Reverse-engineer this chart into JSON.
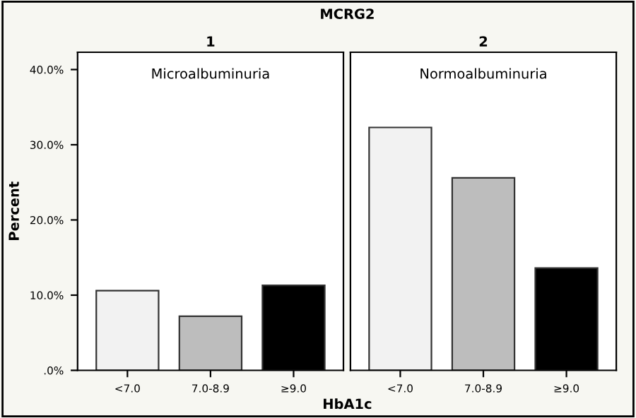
{
  "chart_data": [
    {
      "type": "bar",
      "title": "1",
      "ylabel": "Percent",
      "annotations": [
        "MCRG2",
        "Microalbuminuria"
      ],
      "categories": [
        "<7.0",
        "7.0-8.9",
        "≥9.0"
      ],
      "values": [
        10.6,
        7.2,
        11.3
      ],
      "colors": [
        "#f2f2f2",
        "#bdbdbd",
        "#000000"
      ],
      "ylim": [
        0,
        42.3
      ],
      "yticks": [
        {
          "value": 0,
          "label": ".0%"
        },
        {
          "value": 10,
          "label": "10.0%"
        },
        {
          "value": 20,
          "label": "20.0%"
        },
        {
          "value": 30,
          "label": "30.0%"
        },
        {
          "value": 40,
          "label": "40.0%"
        }
      ],
      "grid": false
    },
    {
      "type": "bar",
      "title": "2",
      "xlabel": "HbA1c",
      "annotations": [
        "Normoalbuminuria"
      ],
      "categories": [
        "<7.0",
        "7.0-8.9",
        "≥9.0"
      ],
      "values": [
        32.3,
        25.6,
        13.6
      ],
      "colors": [
        "#f2f2f2",
        "#bdbdbd",
        "#000000"
      ],
      "ylim": [
        0,
        42.3
      ],
      "tick_labels": "x",
      "grid": false
    }
  ]
}
